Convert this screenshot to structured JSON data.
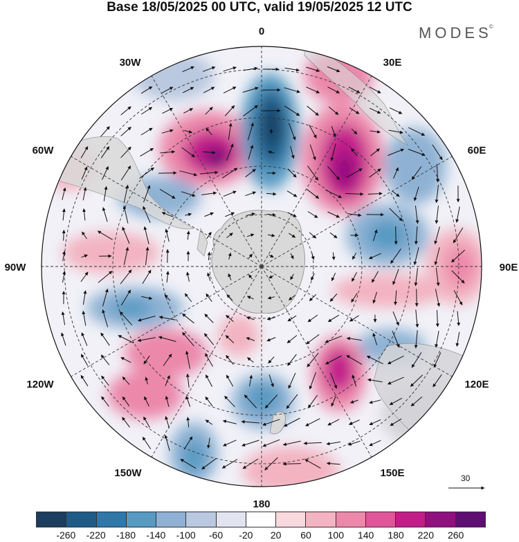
{
  "header": {
    "title": "Base 18/05/2025 00 UTC, valid 19/05/2025 12 UTC",
    "brand": "MODES",
    "brand_mark": "©"
  },
  "map": {
    "projection": "south-polar-stereographic",
    "meridian_labels": {
      "m0": "0",
      "m30e": "30E",
      "m60e": "60E",
      "m90e": "90E",
      "m120e": "120E",
      "m150e": "150E",
      "m180": "180",
      "m150w": "150W",
      "m120w": "120W",
      "m90w": "90W",
      "m60w": "60W",
      "m30w": "30W"
    },
    "reference_vector": "30",
    "grid_lines": true,
    "land_color": "#d9d9d9",
    "background": "#ffffff"
  },
  "colorbar": {
    "colors": [
      "#1b3d5e",
      "#1f5b87",
      "#2f78a8",
      "#579ac2",
      "#8fb2d4",
      "#bac8e0",
      "#e2e4f0",
      "#ffffff",
      "#f8d9de",
      "#f3b3c1",
      "#ec88aa",
      "#e1559a",
      "#c21e8a",
      "#8f107f",
      "#5f0f73"
    ],
    "tick_labels": [
      "-260",
      "-220",
      "-180",
      "-140",
      "-100",
      "-60",
      "-20",
      "20",
      "60",
      "100",
      "140",
      "180",
      "220",
      "260"
    ]
  }
}
